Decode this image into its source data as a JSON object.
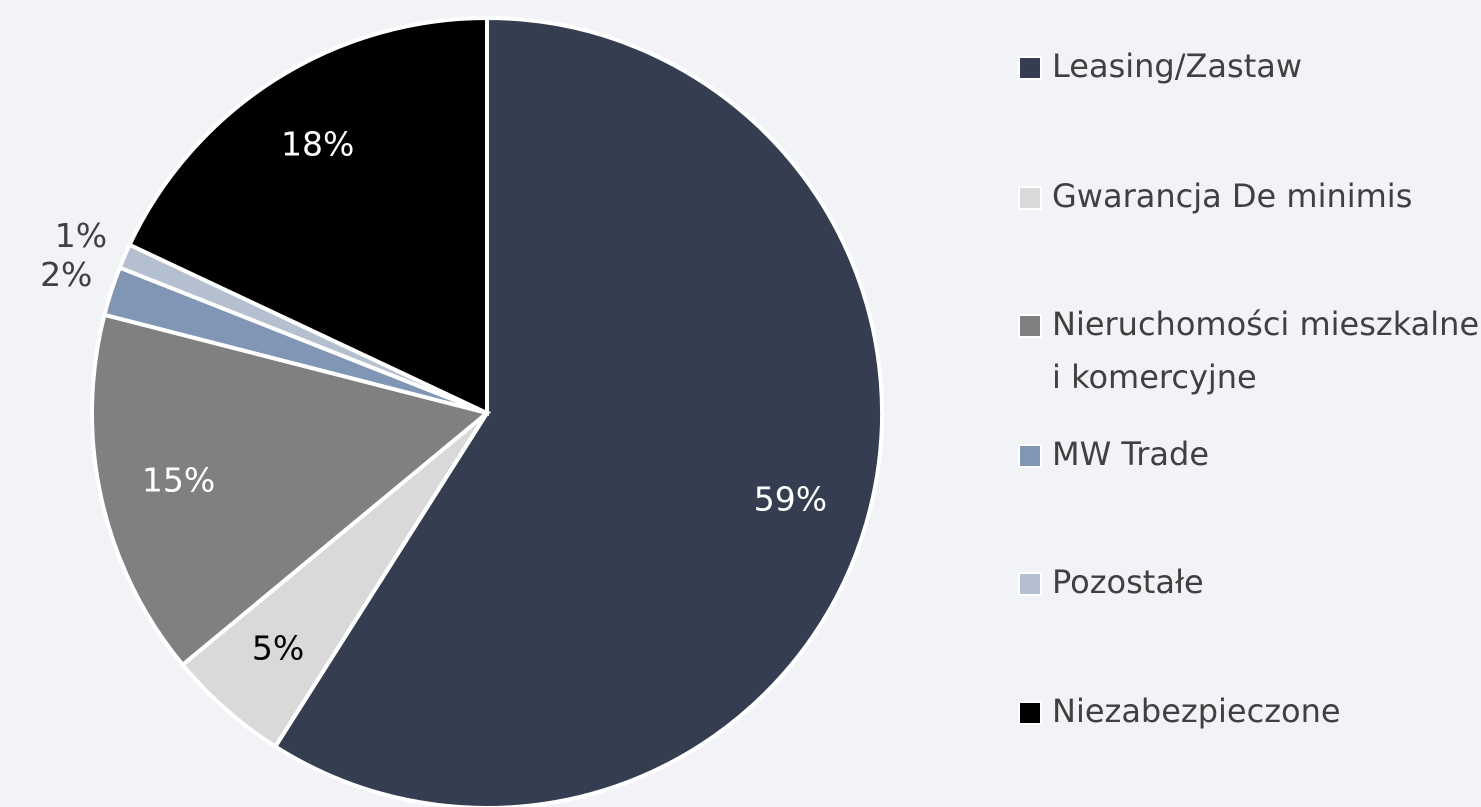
{
  "chart_data": {
    "type": "pie",
    "categories": [
      "Leasing/Zastaw",
      "Gwarancja De minimis",
      "Nieruchomości mieszkalne i komercyjne",
      "MW Trade",
      "Pozostałe",
      "Niezabezpieczone"
    ],
    "values": [
      59,
      5,
      15,
      2,
      1,
      18
    ],
    "value_labels": [
      "59%",
      "5%",
      "15%",
      "2%",
      "1%",
      "18%"
    ],
    "colors": [
      "#353e50",
      "#d9d9d9",
      "#808080",
      "#8096b4",
      "#b4c0d0",
      "#000000"
    ],
    "legend": "right"
  }
}
